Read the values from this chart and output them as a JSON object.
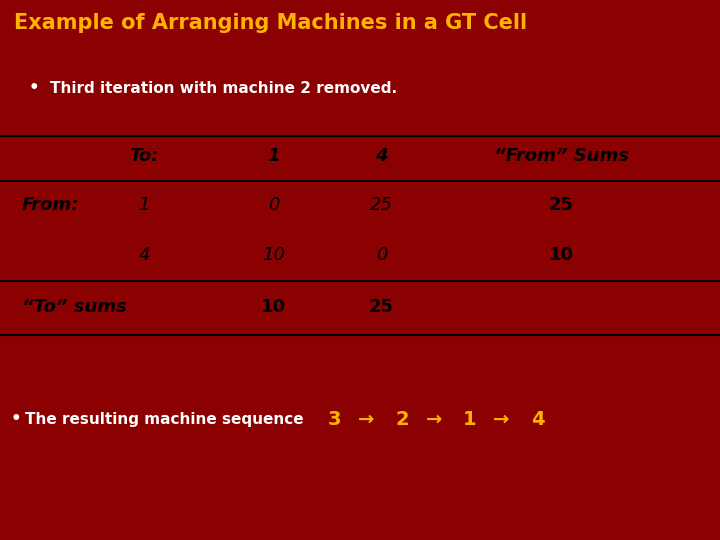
{
  "title": "Example of Arranging Machines in a GT Cell",
  "title_color": "#FFB300",
  "title_bg": "#8B0000",
  "bullet1": "Third iteration with machine 2 removed.",
  "bullet1_color": "#FFFFFF",
  "table_bg": "#FFFFFF",
  "table_header_row": [
    "To:",
    "1",
    "4",
    "“From” Sums"
  ],
  "table_col0": [
    "From:",
    "1",
    "4",
    "“To” sums"
  ],
  "table_data": [
    [
      "",
      "0",
      "25",
      "25"
    ],
    [
      "",
      "10",
      "0",
      "10"
    ],
    [
      "",
      "10",
      "25",
      ""
    ]
  ],
  "bottom_bg": "#8B0000",
  "bullet2_prefix_color": "#FFFFFF",
  "sequence": [
    "3",
    "→",
    "2",
    "→",
    "1",
    "→",
    "4"
  ],
  "sequence_color": "#FFB300"
}
